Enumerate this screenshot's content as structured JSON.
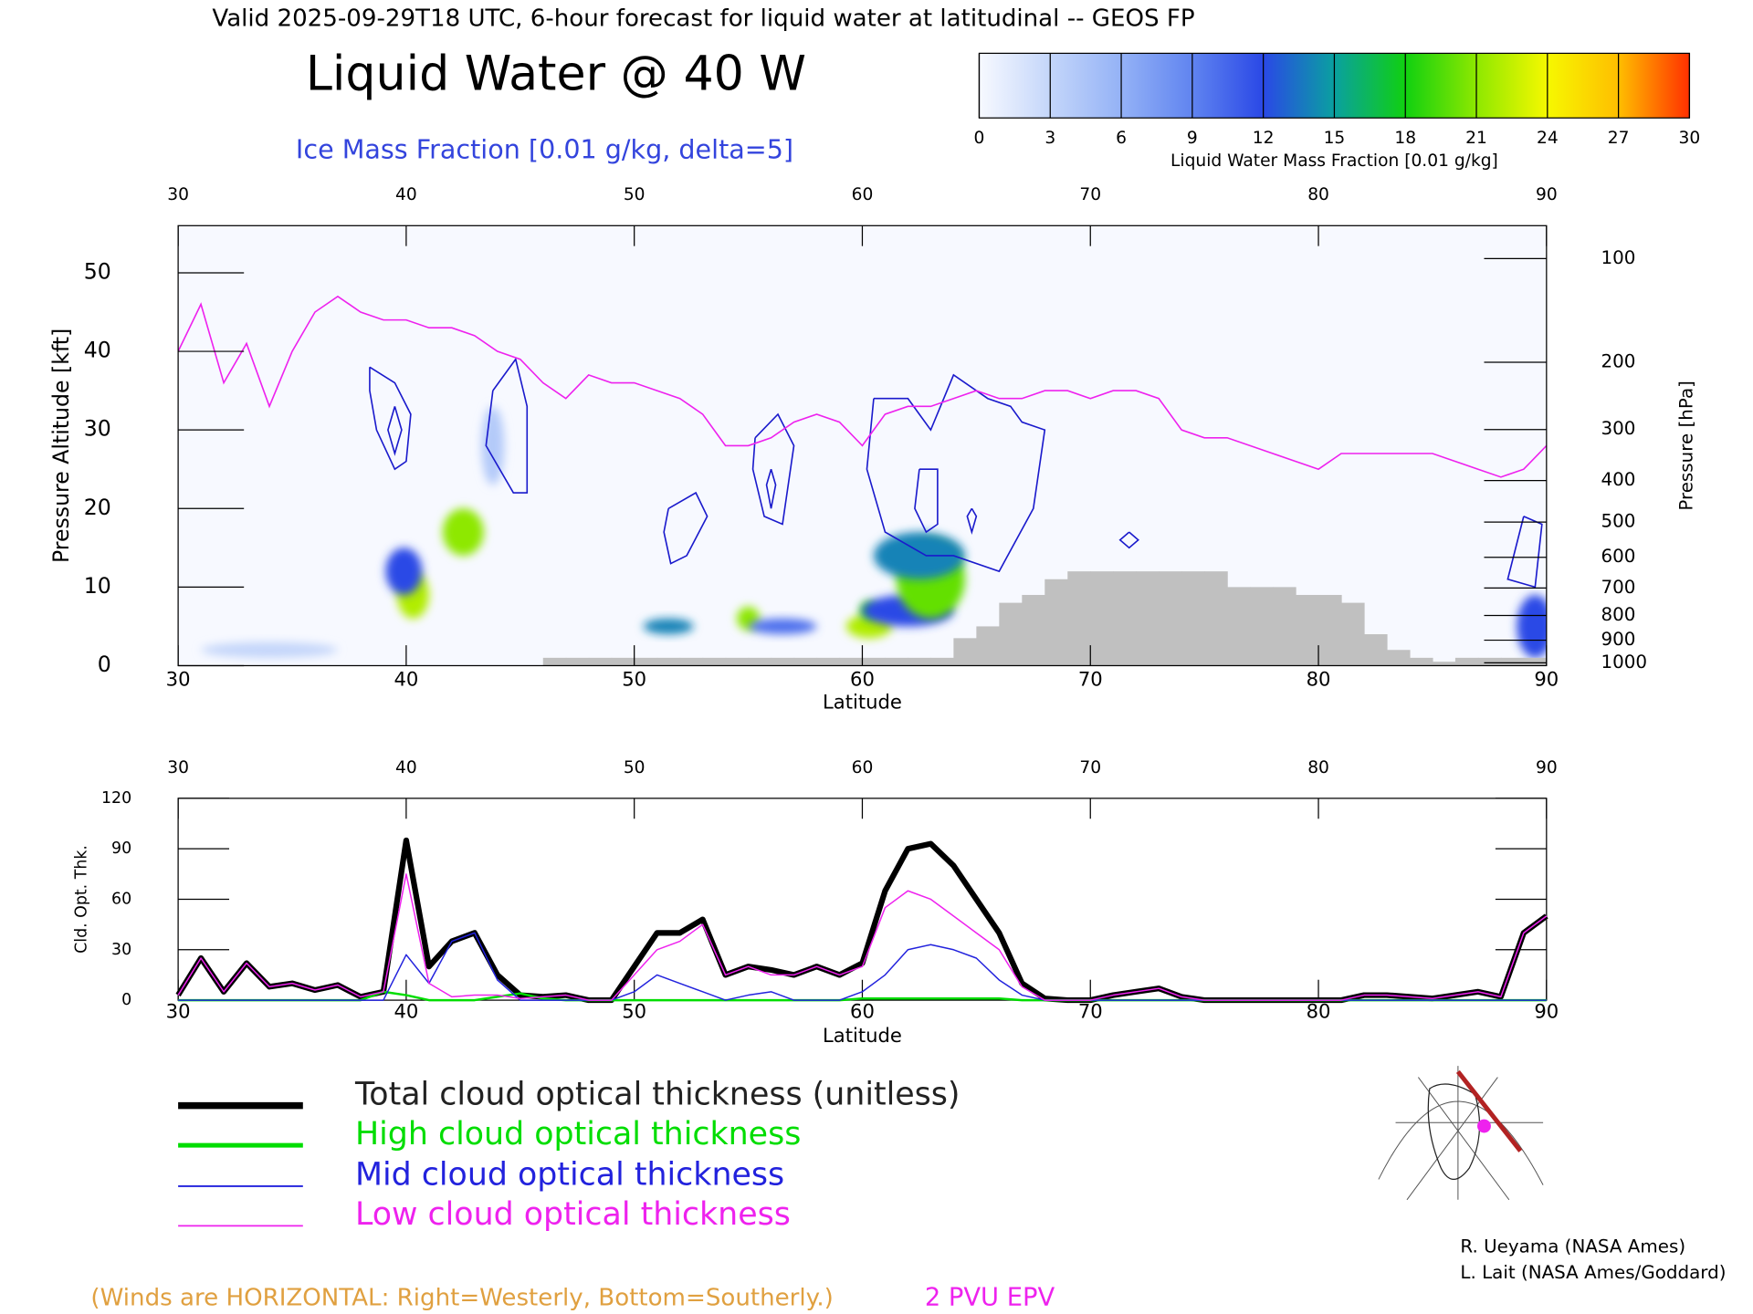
{
  "chart_data": [
    {
      "type": "cross-section",
      "title": "Valid 2025-09-29T18 UTC, 6-hour forecast for liquid water at latitudinal -- GEOS FP",
      "subtitle": "Liquid Water @ 40 W",
      "contour_label": "Ice Mass Fraction [0.01 g/kg, delta=5]",
      "xlabel": "Latitude",
      "ylabel": "Pressure Altitude [kft]",
      "y2label": "Pressure [hPa]",
      "xlim": [
        30,
        90
      ],
      "xticks": [
        30,
        40,
        50,
        60,
        70,
        80,
        90
      ],
      "ylim": [
        0,
        56
      ],
      "yticks": [
        0,
        10,
        20,
        30,
        40,
        50
      ],
      "y2scale": "standard-atmosphere",
      "y2ticks": [
        100,
        200,
        300,
        400,
        500,
        600,
        700,
        800,
        900,
        1000
      ],
      "colorbar": {
        "label": "Liquid Water Mass Fraction [0.01 g/kg]",
        "ticks": [
          0,
          3,
          6,
          9,
          12,
          15,
          18,
          21,
          24,
          27,
          30
        ],
        "colors": [
          "#f7f9ff",
          "#c4d6fa",
          "#94b2f6",
          "#6084f0",
          "#2a48e6",
          "#0aa0a0",
          "#10d010",
          "#8ee800",
          "#f6f800",
          "#ffbe00",
          "#ff3000"
        ]
      },
      "liquid_water": [
        {
          "x": 40.3,
          "y": 9,
          "value": 22,
          "rx": 0.7,
          "ry": 3
        },
        {
          "x": 39.9,
          "y": 12,
          "value": 12,
          "rx": 0.8,
          "ry": 3
        },
        {
          "x": 42.5,
          "y": 17,
          "value": 21,
          "rx": 0.9,
          "ry": 3
        },
        {
          "x": 43.8,
          "y": 28,
          "value": 4,
          "rx": 0.5,
          "ry": 5
        },
        {
          "x": 34,
          "y": 2,
          "value": 3,
          "rx": 3,
          "ry": 1
        },
        {
          "x": 51.5,
          "y": 5,
          "value": 14,
          "rx": 1.1,
          "ry": 1
        },
        {
          "x": 55,
          "y": 6,
          "value": 21,
          "rx": 0.5,
          "ry": 1.5
        },
        {
          "x": 56.5,
          "y": 5,
          "value": 10,
          "rx": 1.5,
          "ry": 1
        },
        {
          "x": 60.3,
          "y": 5,
          "value": 22,
          "rx": 1,
          "ry": 1.5
        },
        {
          "x": 60.3,
          "y": 7,
          "value": 19,
          "rx": 0.4,
          "ry": 1.2
        },
        {
          "x": 62,
          "y": 7,
          "value": 12,
          "rx": 2,
          "ry": 2
        },
        {
          "x": 63,
          "y": 11,
          "value": 20,
          "rx": 1.5,
          "ry": 5
        },
        {
          "x": 62.5,
          "y": 14,
          "value": 14,
          "rx": 2,
          "ry": 3
        },
        {
          "x": 89.5,
          "y": 5,
          "value": 12,
          "rx": 0.8,
          "ry": 4
        }
      ],
      "ice_contours": {
        "color": "#1a1acc",
        "lines": [
          {
            "x": [
              38.4,
              39.5,
              40.2,
              40,
              39.5,
              38.7,
              38.4,
              38.4
            ],
            "y": [
              38,
              36,
              32,
              26,
              25,
              30,
              35,
              38
            ]
          },
          {
            "x": [
              39.5,
              39.8,
              39.5,
              39.2,
              39.5
            ],
            "y": [
              33,
              30,
              27,
              30,
              33
            ]
          },
          {
            "x": [
              43.8,
              44.8,
              45.3,
              45.3,
              44.7,
              43.5,
              43.8
            ],
            "y": [
              35,
              39,
              33,
              22,
              22,
              28,
              35
            ]
          },
          {
            "x": [
              51.5,
              52.7,
              53.2,
              52.3,
              51.6,
              51.3,
              51.5
            ],
            "y": [
              20,
              22,
              19,
              14,
              13,
              17,
              20
            ]
          },
          {
            "x": [
              55.3,
              56.3,
              57,
              56.5,
              55.7,
              55.2,
              55.3
            ],
            "y": [
              29,
              32,
              28,
              18,
              19,
              25,
              29
            ]
          },
          {
            "x": [
              56,
              56.2,
              56,
              55.8,
              56
            ],
            "y": [
              25,
              23,
              20,
              23,
              25
            ]
          },
          {
            "x": [
              60.5,
              62,
              63,
              64,
              65.5,
              66.5,
              67,
              68,
              67.5,
              66,
              64,
              62.8,
              61,
              60.2,
              60.5
            ],
            "y": [
              34,
              34,
              30,
              37,
              34,
              33,
              31,
              30,
              20,
              12,
              14,
              14,
              17,
              25,
              34
            ]
          },
          {
            "x": [
              62.5,
              63.3,
              63.3,
              62.8,
              62.3,
              62.5
            ],
            "y": [
              25,
              25,
              18,
              17,
              20,
              25
            ]
          },
          {
            "x": [
              64.8,
              65,
              64.8,
              64.6,
              64.8
            ],
            "y": [
              20,
              19,
              17,
              19,
              20
            ]
          },
          {
            "x": [
              71.7,
              72.1,
              71.7,
              71.3,
              71.7
            ],
            "y": [
              17,
              16,
              15,
              16,
              17
            ]
          },
          {
            "x": [
              89,
              89.8,
              89.5,
              88.3,
              89
            ],
            "y": [
              19,
              18,
              10,
              11,
              19
            ]
          }
        ]
      },
      "epv": {
        "name": "2 PVU EPV",
        "color": "#ee22ee",
        "x": [
          30,
          31,
          32,
          33,
          34,
          35,
          36,
          37,
          38,
          39,
          40,
          41,
          42,
          43,
          44,
          45,
          46,
          47,
          48,
          49,
          50,
          51,
          52,
          53,
          54,
          55,
          56,
          57,
          58,
          59,
          60,
          61,
          62,
          63,
          64,
          65,
          66,
          67,
          68,
          69,
          70,
          71,
          72,
          73,
          74,
          75,
          76,
          77,
          78,
          79,
          80,
          81,
          82,
          83,
          84,
          85,
          86,
          87,
          88,
          89,
          90
        ],
        "y": [
          40,
          46,
          36,
          41,
          33,
          40,
          45,
          47,
          45,
          44,
          44,
          43,
          43,
          42,
          40,
          39,
          36,
          34,
          37,
          36,
          36,
          35,
          34,
          32,
          28,
          28,
          29,
          31,
          32,
          31,
          28,
          32,
          33,
          33,
          34,
          35,
          34,
          34,
          35,
          35,
          34,
          35,
          35,
          34,
          30,
          29,
          29,
          28,
          27,
          26,
          25,
          27,
          27,
          27,
          27,
          27,
          26,
          25,
          24,
          25,
          28
        ]
      },
      "terrain": {
        "color": "#c0c0c0",
        "x": [
          46,
          47,
          48,
          49,
          50,
          51,
          52,
          53,
          54,
          55,
          56,
          57,
          58,
          59,
          60,
          61,
          62,
          63,
          64,
          65,
          66,
          67,
          68,
          69,
          70,
          71,
          72,
          73,
          74,
          75,
          76,
          77,
          78,
          79,
          80,
          81,
          82,
          83,
          84,
          85,
          86,
          87,
          88,
          89
        ],
        "y": [
          1,
          1,
          1,
          1,
          1,
          1,
          1,
          1,
          1,
          1,
          1,
          1,
          1,
          1,
          1,
          1,
          1,
          1,
          3.5,
          5,
          8,
          9,
          11,
          12,
          12,
          12,
          12,
          12,
          12,
          12,
          10,
          10,
          10,
          9,
          9,
          8,
          4,
          2,
          1,
          0.5,
          1,
          1,
          1,
          1
        ]
      },
      "note": "(Winds are HORIZONTAL: Right=Westerly, Bottom=Southerly.)"
    },
    {
      "type": "line",
      "xlabel": "Latitude",
      "ylabel": "Cld. Opt. Thk.",
      "xlim": [
        30,
        90
      ],
      "xticks": [
        30,
        40,
        50,
        60,
        70,
        80,
        90
      ],
      "ylim": [
        0,
        120
      ],
      "yticks": [
        0,
        30,
        60,
        90,
        120
      ],
      "x": [
        30,
        31,
        32,
        33,
        34,
        35,
        36,
        37,
        38,
        39,
        40,
        41,
        42,
        43,
        44,
        45,
        46,
        47,
        48,
        49,
        50,
        51,
        52,
        53,
        54,
        55,
        56,
        57,
        58,
        59,
        60,
        61,
        62,
        63,
        64,
        65,
        66,
        67,
        68,
        69,
        70,
        71,
        72,
        73,
        74,
        75,
        76,
        77,
        78,
        79,
        80,
        81,
        82,
        83,
        84,
        85,
        86,
        87,
        88,
        89,
        90
      ],
      "series": [
        {
          "name": "Total cloud optical thickness (unitless)",
          "color": "#000000",
          "width": 5,
          "legend_width": 6,
          "values": [
            3,
            25,
            5,
            22,
            8,
            10,
            6,
            9,
            2,
            5,
            95,
            20,
            35,
            40,
            15,
            3,
            2,
            3,
            0,
            0,
            20,
            40,
            40,
            48,
            15,
            20,
            18,
            15,
            20,
            15,
            22,
            65,
            90,
            93,
            80,
            60,
            40,
            10,
            1,
            0,
            0,
            3,
            5,
            7,
            2,
            0,
            0,
            0,
            0,
            0,
            0,
            0,
            3,
            3,
            2,
            1,
            3,
            5,
            2,
            40,
            50
          ]
        },
        {
          "name": "High cloud optical thickness",
          "color": "#00dd00",
          "width": 2,
          "legend_width": 4,
          "values": [
            0,
            0,
            0,
            0,
            0,
            0,
            0,
            0,
            0,
            5,
            3,
            0,
            0,
            0,
            2,
            4,
            1,
            0,
            0,
            0,
            0,
            0,
            0,
            0,
            0,
            0,
            0,
            0,
            0,
            0,
            1,
            1,
            1,
            1,
            1,
            1,
            1,
            0,
            0,
            0,
            0,
            0,
            0,
            0,
            0,
            0,
            0,
            0,
            0,
            0,
            0,
            0,
            0,
            0,
            0,
            0,
            0,
            0,
            0,
            0,
            0
          ]
        },
        {
          "name": "Mid cloud optical thickness",
          "color": "#2222dd",
          "width": 1.2,
          "legend_width": 1.5,
          "values": [
            0,
            0,
            0,
            0,
            0,
            0,
            0,
            0,
            0,
            0,
            27,
            10,
            35,
            40,
            12,
            0,
            0,
            0,
            0,
            0,
            5,
            15,
            10,
            5,
            0,
            3,
            5,
            0,
            0,
            0,
            5,
            15,
            30,
            33,
            30,
            25,
            12,
            3,
            0,
            0,
            0,
            0,
            0,
            0,
            0,
            0,
            0,
            0,
            0,
            0,
            0,
            0,
            0,
            0,
            0,
            0,
            0,
            0,
            0,
            0,
            0
          ]
        },
        {
          "name": "Low cloud optical thickness",
          "color": "#ee22ee",
          "width": 1.2,
          "legend_width": 1.5,
          "values": [
            3,
            25,
            5,
            22,
            8,
            10,
            6,
            9,
            2,
            5,
            75,
            10,
            2,
            3,
            3,
            1,
            2,
            3,
            0,
            0,
            15,
            30,
            35,
            45,
            15,
            20,
            15,
            15,
            20,
            15,
            20,
            55,
            65,
            60,
            50,
            40,
            30,
            8,
            0,
            0,
            0,
            3,
            5,
            7,
            2,
            0,
            0,
            0,
            0,
            0,
            0,
            0,
            3,
            3,
            2,
            1,
            3,
            5,
            2,
            40,
            50
          ]
        }
      ],
      "credits": [
        "R. Ueyama (NASA Ames)",
        "L. Lait (NASA Ames/Goddard)"
      ]
    }
  ]
}
